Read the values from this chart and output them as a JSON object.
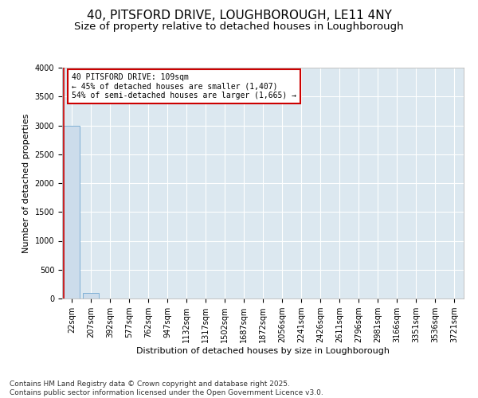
{
  "title": "40, PITSFORD DRIVE, LOUGHBOROUGH, LE11 4NY",
  "subtitle": "Size of property relative to detached houses in Loughborough",
  "xlabel": "Distribution of detached houses by size in Loughborough",
  "ylabel": "Number of detached properties",
  "bar_labels": [
    "22sqm",
    "207sqm",
    "392sqm",
    "577sqm",
    "762sqm",
    "947sqm",
    "1132sqm",
    "1317sqm",
    "1502sqm",
    "1687sqm",
    "1872sqm",
    "2056sqm",
    "2241sqm",
    "2426sqm",
    "2611sqm",
    "2796sqm",
    "2981sqm",
    "3166sqm",
    "3351sqm",
    "3536sqm",
    "3721sqm"
  ],
  "bar_values": [
    3000,
    100,
    5,
    2,
    1,
    1,
    0,
    0,
    0,
    0,
    0,
    0,
    0,
    0,
    0,
    0,
    0,
    0,
    0,
    0,
    0
  ],
  "bar_color": "#ccdceb",
  "bar_edge_color": "#7fb0d5",
  "annotation_line1": "40 PITSFORD DRIVE: 109sqm",
  "annotation_line2": "← 45% of detached houses are smaller (1,407)",
  "annotation_line3": "54% of semi-detached houses are larger (1,665) →",
  "annotation_box_color": "#ffffff",
  "annotation_box_edge_color": "#cc0000",
  "vline_color": "#cc0000",
  "ylim": [
    0,
    4000
  ],
  "yticks": [
    0,
    500,
    1000,
    1500,
    2000,
    2500,
    3000,
    3500,
    4000
  ],
  "background_color": "#dce8f0",
  "grid_color": "#ffffff",
  "footer_line1": "Contains HM Land Registry data © Crown copyright and database right 2025.",
  "footer_line2": "Contains public sector information licensed under the Open Government Licence v3.0.",
  "title_fontsize": 11,
  "subtitle_fontsize": 9.5,
  "axis_fontsize": 8,
  "tick_fontsize": 7,
  "footer_fontsize": 6.5
}
